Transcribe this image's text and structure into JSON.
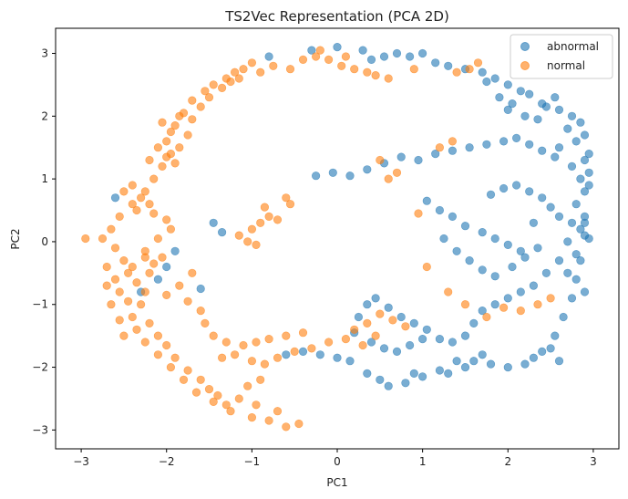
{
  "chart_data": {
    "type": "scatter",
    "title": "TS2Vec Representation (PCA 2D)",
    "xlabel": "PC1",
    "ylabel": "PC2",
    "xlim": [
      -3.3,
      3.3
    ],
    "ylim": [
      -3.3,
      3.4
    ],
    "xticks": [
      -3,
      -2,
      -1,
      0,
      1,
      2,
      3
    ],
    "yticks": [
      -3,
      -2,
      -1,
      0,
      1,
      2,
      3
    ],
    "grid": false,
    "legend": "top-right",
    "series": [
      {
        "name": "abnormal",
        "color": "#1f77b4",
        "points": [
          [
            -0.8,
            2.95
          ],
          [
            -0.3,
            3.05
          ],
          [
            0.0,
            3.1
          ],
          [
            0.3,
            3.05
          ],
          [
            0.4,
            2.9
          ],
          [
            0.55,
            2.95
          ],
          [
            0.7,
            3.0
          ],
          [
            0.85,
            2.95
          ],
          [
            1.0,
            3.0
          ],
          [
            1.15,
            2.85
          ],
          [
            1.3,
            2.8
          ],
          [
            1.5,
            2.75
          ],
          [
            1.7,
            2.7
          ],
          [
            1.85,
            2.6
          ],
          [
            2.0,
            2.5
          ],
          [
            2.15,
            2.4
          ],
          [
            2.25,
            2.35
          ],
          [
            2.4,
            2.2
          ],
          [
            2.6,
            2.1
          ],
          [
            2.75,
            2.0
          ],
          [
            2.85,
            1.9
          ],
          [
            2.9,
            1.7
          ],
          [
            2.95,
            1.4
          ],
          [
            2.95,
            1.1
          ],
          [
            2.9,
            0.8
          ],
          [
            2.9,
            0.4
          ],
          [
            2.9,
            0.1
          ],
          [
            2.85,
            -0.3
          ],
          [
            2.8,
            -0.6
          ],
          [
            2.75,
            -0.9
          ],
          [
            2.65,
            -1.2
          ],
          [
            2.55,
            -1.5
          ],
          [
            2.4,
            -1.75
          ],
          [
            2.2,
            -1.95
          ],
          [
            2.0,
            -2.0
          ],
          [
            1.8,
            -1.95
          ],
          [
            1.6,
            -1.9
          ],
          [
            1.4,
            -1.9
          ],
          [
            1.2,
            -2.05
          ],
          [
            1.0,
            -2.15
          ],
          [
            0.8,
            -2.25
          ],
          [
            0.6,
            -2.3
          ],
          [
            0.35,
            -2.1
          ],
          [
            0.15,
            -1.9
          ],
          [
            0.0,
            -1.85
          ],
          [
            -0.2,
            -1.8
          ],
          [
            -0.4,
            -1.75
          ],
          [
            -0.6,
            -1.8
          ],
          [
            2.6,
            1.5
          ],
          [
            2.75,
            1.2
          ],
          [
            2.85,
            1.0
          ],
          [
            2.8,
            0.6
          ],
          [
            2.75,
            0.3
          ],
          [
            2.85,
            0.2
          ],
          [
            2.95,
            0.05
          ],
          [
            2.7,
            0.0
          ],
          [
            2.6,
            -0.3
          ],
          [
            2.45,
            -0.5
          ],
          [
            2.3,
            -0.7
          ],
          [
            2.15,
            -0.8
          ],
          [
            2.0,
            -0.9
          ],
          [
            1.85,
            -1.0
          ],
          [
            1.7,
            -1.1
          ],
          [
            1.6,
            -1.3
          ],
          [
            1.5,
            -1.5
          ],
          [
            1.35,
            -1.6
          ],
          [
            1.2,
            -1.55
          ],
          [
            1.05,
            -1.4
          ],
          [
            0.9,
            -1.3
          ],
          [
            0.75,
            -1.2
          ],
          [
            0.6,
            -1.05
          ],
          [
            0.45,
            -0.9
          ],
          [
            0.35,
            -1.0
          ],
          [
            0.25,
            -1.2
          ],
          [
            0.2,
            -1.45
          ],
          [
            0.4,
            -1.6
          ],
          [
            0.55,
            -1.7
          ],
          [
            0.7,
            -1.75
          ],
          [
            0.85,
            -1.65
          ],
          [
            1.0,
            -1.55
          ],
          [
            -0.25,
            1.05
          ],
          [
            -0.05,
            1.1
          ],
          [
            0.15,
            1.05
          ],
          [
            0.35,
            1.15
          ],
          [
            0.55,
            1.25
          ],
          [
            0.75,
            1.35
          ],
          [
            0.95,
            1.3
          ],
          [
            1.15,
            1.4
          ],
          [
            1.35,
            1.45
          ],
          [
            1.55,
            1.5
          ],
          [
            1.75,
            1.55
          ],
          [
            1.95,
            1.6
          ],
          [
            2.1,
            1.65
          ],
          [
            2.25,
            1.55
          ],
          [
            2.4,
            1.45
          ],
          [
            2.55,
            1.35
          ],
          [
            1.05,
            0.65
          ],
          [
            1.2,
            0.5
          ],
          [
            1.35,
            0.4
          ],
          [
            1.5,
            0.25
          ],
          [
            1.7,
            0.15
          ],
          [
            1.85,
            0.05
          ],
          [
            2.0,
            -0.05
          ],
          [
            2.15,
            -0.15
          ],
          [
            1.25,
            0.05
          ],
          [
            1.4,
            -0.15
          ],
          [
            1.55,
            -0.3
          ],
          [
            1.7,
            -0.45
          ],
          [
            1.85,
            -0.55
          ],
          [
            2.05,
            -0.4
          ],
          [
            2.2,
            -0.25
          ],
          [
            2.35,
            -0.1
          ],
          [
            1.8,
            0.75
          ],
          [
            1.95,
            0.85
          ],
          [
            2.1,
            0.9
          ],
          [
            2.25,
            0.8
          ],
          [
            2.4,
            0.7
          ],
          [
            2.5,
            0.55
          ],
          [
            2.6,
            0.4
          ],
          [
            2.3,
            0.3
          ],
          [
            2.0,
            2.1
          ],
          [
            2.2,
            2.0
          ],
          [
            2.35,
            1.95
          ],
          [
            2.45,
            2.15
          ],
          [
            2.55,
            2.3
          ],
          [
            1.75,
            2.55
          ],
          [
            1.9,
            2.3
          ],
          [
            2.05,
            2.2
          ],
          [
            -1.45,
            0.3
          ],
          [
            -1.35,
            0.15
          ],
          [
            -1.9,
            -0.15
          ],
          [
            -2.0,
            -0.4
          ],
          [
            -2.1,
            -0.6
          ],
          [
            -2.3,
            -0.8
          ],
          [
            -1.6,
            -0.75
          ],
          [
            -2.6,
            0.7
          ],
          [
            0.9,
            -2.1
          ],
          [
            0.5,
            -2.2
          ],
          [
            1.3,
            -2.1
          ],
          [
            1.5,
            -2.0
          ],
          [
            1.7,
            -1.8
          ],
          [
            2.3,
            -1.85
          ],
          [
            2.5,
            -1.7
          ],
          [
            2.6,
            -1.9
          ],
          [
            2.7,
            1.8
          ],
          [
            2.8,
            1.6
          ],
          [
            2.9,
            1.3
          ],
          [
            2.95,
            0.9
          ],
          [
            2.9,
            0.3
          ],
          [
            2.8,
            -0.2
          ],
          [
            2.7,
            -0.5
          ],
          [
            2.9,
            -0.8
          ]
        ]
      },
      {
        "name": "normal",
        "color": "#ff7f0e",
        "points": [
          [
            -1.0,
            2.85
          ],
          [
            -1.1,
            2.75
          ],
          [
            -1.2,
            2.7
          ],
          [
            -1.3,
            2.6
          ],
          [
            -1.45,
            2.5
          ],
          [
            -1.55,
            2.4
          ],
          [
            -1.7,
            2.25
          ],
          [
            -1.8,
            2.05
          ],
          [
            -1.9,
            1.85
          ],
          [
            -2.0,
            1.6
          ],
          [
            -1.95,
            1.4
          ],
          [
            -2.05,
            1.2
          ],
          [
            -2.15,
            1.0
          ],
          [
            -2.25,
            0.8
          ],
          [
            -2.4,
            0.6
          ],
          [
            -2.55,
            0.4
          ],
          [
            -2.65,
            0.2
          ],
          [
            -2.75,
            0.05
          ],
          [
            -2.95,
            0.05
          ],
          [
            -2.6,
            -0.1
          ],
          [
            -2.5,
            -0.3
          ],
          [
            -2.45,
            -0.5
          ],
          [
            -2.35,
            -0.65
          ],
          [
            -2.25,
            -0.8
          ],
          [
            -2.3,
            -1.0
          ],
          [
            -2.4,
            -1.2
          ],
          [
            -2.35,
            -1.4
          ],
          [
            -2.25,
            -1.6
          ],
          [
            -2.1,
            -1.8
          ],
          [
            -1.95,
            -2.0
          ],
          [
            -1.8,
            -2.2
          ],
          [
            -1.65,
            -2.4
          ],
          [
            -1.45,
            -2.55
          ],
          [
            -1.25,
            -2.7
          ],
          [
            -1.0,
            -2.8
          ],
          [
            -0.8,
            -2.85
          ],
          [
            -0.6,
            -2.95
          ],
          [
            -0.45,
            -2.9
          ],
          [
            -0.7,
            -2.7
          ],
          [
            -0.95,
            -2.6
          ],
          [
            -2.1,
            1.5
          ],
          [
            -2.0,
            1.35
          ],
          [
            -1.9,
            1.25
          ],
          [
            -2.2,
            1.3
          ],
          [
            -1.85,
            1.5
          ],
          [
            -1.75,
            1.7
          ],
          [
            -1.95,
            1.75
          ],
          [
            -2.05,
            1.9
          ],
          [
            -1.85,
            2.0
          ],
          [
            -1.7,
            1.95
          ],
          [
            -1.6,
            2.15
          ],
          [
            -1.5,
            2.3
          ],
          [
            -1.35,
            2.45
          ],
          [
            -1.25,
            2.55
          ],
          [
            -1.15,
            2.6
          ],
          [
            -0.9,
            2.7
          ],
          [
            -0.75,
            2.8
          ],
          [
            -0.55,
            2.75
          ],
          [
            -0.4,
            2.9
          ],
          [
            -0.25,
            2.95
          ],
          [
            -0.1,
            2.9
          ],
          [
            0.05,
            2.8
          ],
          [
            0.2,
            2.75
          ],
          [
            0.35,
            2.7
          ],
          [
            0.45,
            2.65
          ],
          [
            0.6,
            2.6
          ],
          [
            0.9,
            2.75
          ],
          [
            1.4,
            2.7
          ],
          [
            1.55,
            2.75
          ],
          [
            1.65,
            2.85
          ],
          [
            0.1,
            2.95
          ],
          [
            -0.2,
            3.05
          ],
          [
            -2.5,
            0.8
          ],
          [
            -2.4,
            0.9
          ],
          [
            -2.3,
            0.7
          ],
          [
            -2.2,
            0.6
          ],
          [
            -2.35,
            0.5
          ],
          [
            -2.15,
            0.45
          ],
          [
            -2.0,
            0.35
          ],
          [
            -1.95,
            0.2
          ],
          [
            -2.7,
            -0.4
          ],
          [
            -2.6,
            -0.6
          ],
          [
            -2.55,
            -0.8
          ],
          [
            -2.45,
            -0.95
          ],
          [
            -2.2,
            -0.5
          ],
          [
            -2.15,
            -0.35
          ],
          [
            -2.05,
            -0.25
          ],
          [
            -2.25,
            -0.15
          ],
          [
            -2.7,
            -0.7
          ],
          [
            -2.65,
            -1.0
          ],
          [
            -2.55,
            -1.25
          ],
          [
            -2.5,
            -1.5
          ],
          [
            -2.2,
            -1.3
          ],
          [
            -2.1,
            -1.5
          ],
          [
            -2.0,
            -1.65
          ],
          [
            -1.9,
            -1.85
          ],
          [
            -1.75,
            -2.05
          ],
          [
            -1.6,
            -2.2
          ],
          [
            -1.5,
            -2.35
          ],
          [
            -1.4,
            -2.45
          ],
          [
            -1.3,
            -2.6
          ],
          [
            -1.15,
            -2.5
          ],
          [
            -1.05,
            -2.3
          ],
          [
            -0.9,
            -2.2
          ],
          [
            -1.55,
            -1.3
          ],
          [
            -1.45,
            -1.5
          ],
          [
            -1.3,
            -1.6
          ],
          [
            -1.1,
            -1.65
          ],
          [
            -0.95,
            -1.6
          ],
          [
            -0.8,
            -1.55
          ],
          [
            -0.6,
            -1.5
          ],
          [
            -0.4,
            -1.45
          ],
          [
            -1.35,
            -1.85
          ],
          [
            -1.2,
            -1.8
          ],
          [
            -1.0,
            -1.9
          ],
          [
            -0.85,
            -1.95
          ],
          [
            -0.7,
            -1.85
          ],
          [
            -0.5,
            -1.75
          ],
          [
            -0.3,
            -1.7
          ],
          [
            -0.1,
            -1.6
          ],
          [
            0.1,
            -1.55
          ],
          [
            0.2,
            -1.4
          ],
          [
            0.35,
            -1.3
          ],
          [
            0.5,
            -1.15
          ],
          [
            0.65,
            -1.25
          ],
          [
            0.8,
            -1.35
          ],
          [
            0.45,
            -1.5
          ],
          [
            0.3,
            -1.65
          ],
          [
            -1.0,
            0.2
          ],
          [
            -0.9,
            0.3
          ],
          [
            -0.8,
            0.4
          ],
          [
            -0.7,
            0.35
          ],
          [
            -0.55,
            0.6
          ],
          [
            -0.85,
            0.55
          ],
          [
            -0.95,
            -0.05
          ],
          [
            -1.05,
            0.0
          ],
          [
            -1.15,
            0.1
          ],
          [
            -0.6,
            0.7
          ],
          [
            0.95,
            0.45
          ],
          [
            1.05,
            -0.4
          ],
          [
            1.3,
            -0.8
          ],
          [
            1.5,
            -1.0
          ],
          [
            1.75,
            -1.2
          ],
          [
            1.95,
            -1.05
          ],
          [
            2.15,
            -1.1
          ],
          [
            2.35,
            -1.0
          ],
          [
            2.5,
            -0.9
          ],
          [
            1.2,
            1.5
          ],
          [
            1.35,
            1.6
          ],
          [
            0.6,
            1.0
          ],
          [
            0.7,
            1.1
          ],
          [
            0.5,
            1.3
          ],
          [
            -2.1,
            0.05
          ],
          [
            -2.25,
            -0.25
          ],
          [
            -2.4,
            -0.4
          ],
          [
            -2.0,
            -0.85
          ],
          [
            -1.85,
            -0.7
          ],
          [
            -1.7,
            -0.5
          ],
          [
            -1.75,
            -0.95
          ],
          [
            -1.6,
            -1.1
          ]
        ]
      }
    ]
  }
}
